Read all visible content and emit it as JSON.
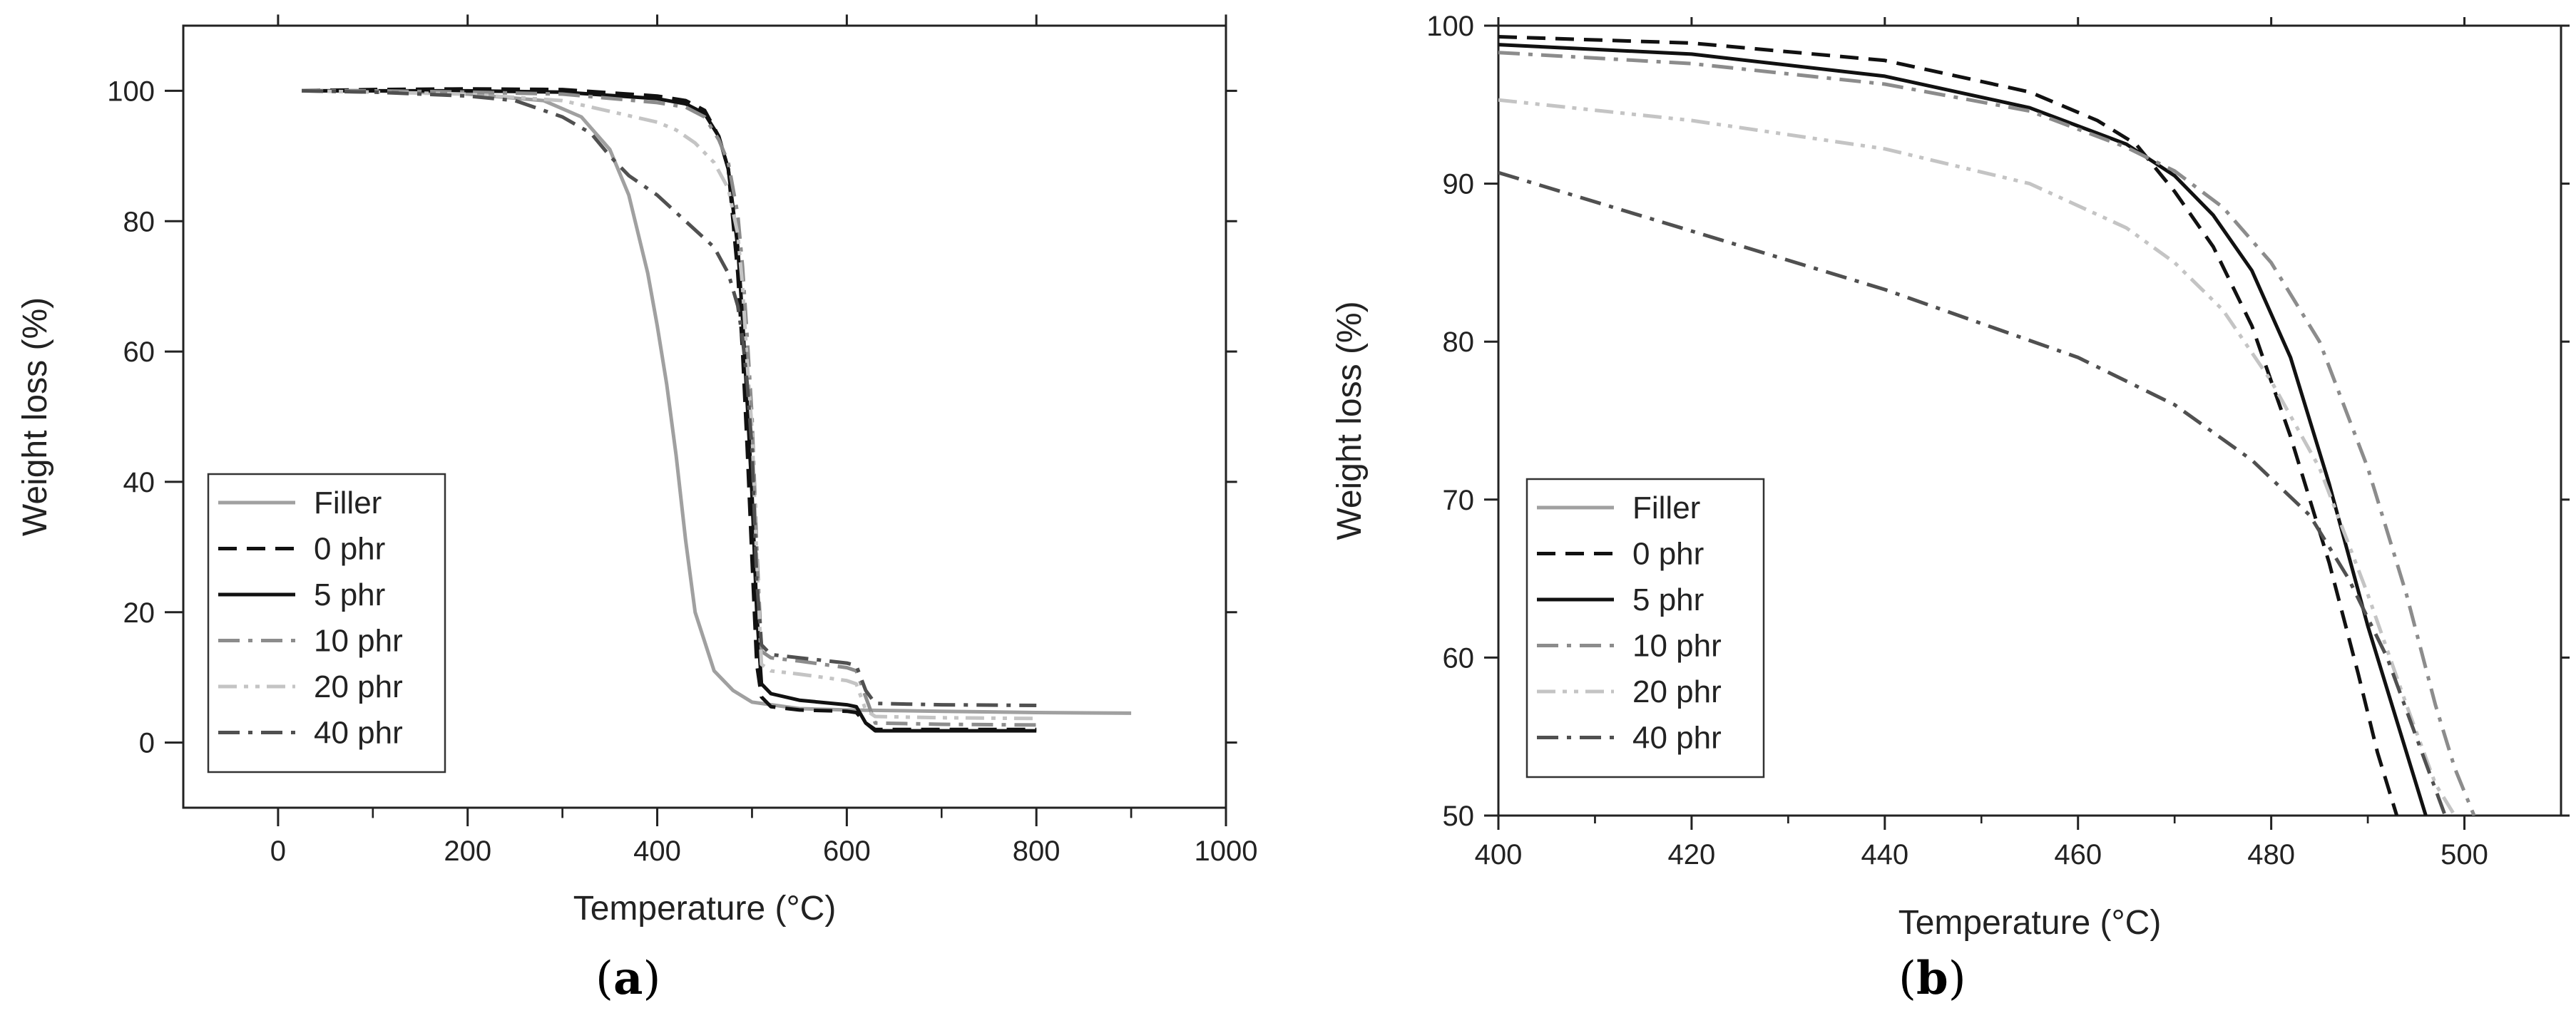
{
  "figure": {
    "panel_a_caption": "a",
    "panel_b_caption": "b"
  },
  "colors": {
    "Filler": "#a0a0a0",
    "0 phr": "#111111",
    "5 phr": "#111111",
    "10 phr": "#8c8c8c",
    "20 phr": "#c4c4c4",
    "40 phr": "#505050"
  },
  "chart_data": [
    {
      "panel": "a",
      "type": "line",
      "title": "",
      "xlabel": "Temperature (°C)",
      "ylabel": "Weight loss (%)",
      "xlim": [
        -100,
        1000
      ],
      "ylim": [
        -10,
        110
      ],
      "xticks": [
        0,
        200,
        400,
        600,
        800,
        1000
      ],
      "yticks": [
        0,
        20,
        40,
        60,
        80,
        100
      ],
      "grid": false,
      "legend_position": "lower-left",
      "series": [
        {
          "name": "Filler",
          "style": "solid",
          "x": [
            25,
            100,
            200,
            280,
            320,
            350,
            370,
            390,
            400,
            410,
            420,
            430,
            440,
            460,
            480,
            500,
            550,
            600,
            700,
            800,
            900
          ],
          "y": [
            100,
            100,
            99.5,
            98.5,
            96,
            91,
            84,
            72,
            64,
            55,
            44,
            31,
            20,
            11,
            8,
            6.2,
            5.2,
            5,
            4.8,
            4.6,
            4.5
          ]
        },
        {
          "name": "0 phr",
          "style": "dash",
          "x": [
            25,
            100,
            200,
            300,
            400,
            430,
            450,
            465,
            475,
            485,
            490,
            495,
            500,
            505,
            510,
            520,
            550,
            600,
            610,
            620,
            630,
            700,
            800
          ],
          "y": [
            100,
            100.2,
            100.3,
            100.2,
            99.2,
            98.5,
            97,
            93,
            88,
            72,
            60,
            45,
            28,
            12,
            7,
            5.5,
            5,
            4.8,
            4.6,
            3,
            2,
            2,
            2
          ]
        },
        {
          "name": "5 phr",
          "style": "solid",
          "x": [
            25,
            100,
            200,
            300,
            400,
            430,
            450,
            465,
            475,
            485,
            490,
            495,
            500,
            505,
            510,
            520,
            550,
            600,
            610,
            620,
            630,
            700,
            800
          ],
          "y": [
            100,
            100,
            100,
            99.8,
            98.8,
            98,
            96.5,
            93,
            88,
            76,
            65,
            52,
            38,
            20,
            9,
            7.5,
            6.5,
            5.8,
            5.5,
            3,
            1.8,
            1.8,
            1.8
          ]
        },
        {
          "name": "10 phr",
          "style": "dashdot",
          "x": [
            25,
            100,
            200,
            300,
            400,
            430,
            450,
            465,
            475,
            485,
            490,
            495,
            500,
            505,
            510,
            520,
            550,
            600,
            610,
            620,
            630,
            700,
            800
          ],
          "y": [
            100,
            100,
            99.8,
            99.5,
            98.2,
            97.5,
            96,
            92.5,
            89,
            81,
            73,
            62,
            50,
            30,
            14,
            13,
            12.5,
            11.5,
            11,
            7,
            3,
            2.8,
            2.7
          ]
        },
        {
          "name": "20 phr",
          "style": "dashdotdot",
          "x": [
            25,
            100,
            200,
            300,
            400,
            420,
            440,
            460,
            475,
            485,
            490,
            495,
            500,
            505,
            510,
            520,
            550,
            600,
            610,
            620,
            630,
            700,
            800
          ],
          "y": [
            100,
            99.8,
            99.5,
            98.5,
            95.2,
            94,
            92,
            89,
            85,
            78,
            70,
            58,
            48,
            28,
            12,
            11,
            10.5,
            9.5,
            9,
            5,
            4,
            3.8,
            3.7
          ]
        },
        {
          "name": "40 phr",
          "style": "dashdot",
          "x": [
            25,
            100,
            200,
            250,
            300,
            330,
            350,
            370,
            400,
            430,
            460,
            475,
            485,
            490,
            495,
            500,
            505,
            510,
            520,
            550,
            600,
            610,
            620,
            630,
            700,
            800
          ],
          "y": [
            100,
            99.8,
            99.2,
            98.5,
            96,
            93.5,
            90,
            87,
            84,
            80,
            76,
            72,
            67,
            62,
            55,
            45,
            25,
            15,
            13.5,
            13,
            12.2,
            11.8,
            8,
            6,
            5.8,
            5.7
          ]
        }
      ]
    },
    {
      "panel": "b",
      "type": "line",
      "title": "",
      "xlabel": "Temperature (°C)",
      "ylabel": "Weight loss (%)",
      "xlim": [
        400,
        510
      ],
      "ylim": [
        50,
        100
      ],
      "xticks": [
        400,
        420,
        440,
        460,
        480,
        500
      ],
      "yticks": [
        50,
        60,
        70,
        80,
        90,
        100
      ],
      "grid": false,
      "legend_position": "lower-left",
      "series": [
        {
          "name": "Filler",
          "style": "solid",
          "x": [],
          "y": []
        },
        {
          "name": "0 phr",
          "style": "dash",
          "x": [
            400,
            420,
            440,
            455,
            462,
            466,
            470,
            474,
            478,
            482,
            486,
            489,
            491,
            493
          ],
          "y": [
            99.3,
            98.9,
            97.8,
            95.8,
            94,
            92.5,
            89.5,
            86,
            81,
            74,
            66,
            59,
            54,
            50
          ]
        },
        {
          "name": "5 phr",
          "style": "solid",
          "x": [
            400,
            420,
            440,
            455,
            465,
            470,
            474,
            478,
            482,
            486,
            490,
            493,
            496
          ],
          "y": [
            98.8,
            98.2,
            96.8,
            94.8,
            92.5,
            90.5,
            88,
            84.5,
            79,
            71,
            62,
            56,
            50
          ]
        },
        {
          "name": "10 phr",
          "style": "dashdot",
          "x": [
            400,
            420,
            440,
            455,
            465,
            470,
            475,
            480,
            485,
            490,
            494,
            497,
            499,
            501
          ],
          "y": [
            98.3,
            97.6,
            96.3,
            94.6,
            92.3,
            90.8,
            88.5,
            85,
            80,
            72,
            64,
            57,
            53,
            50
          ]
        },
        {
          "name": "20 phr",
          "style": "dashdotdot",
          "x": [
            400,
            420,
            440,
            455,
            465,
            470,
            475,
            480,
            485,
            490,
            494,
            497,
            499
          ],
          "y": [
            95.3,
            94,
            92.2,
            90,
            87.2,
            85,
            82,
            77.5,
            72,
            64,
            57,
            52,
            50
          ]
        },
        {
          "name": "40 phr",
          "style": "dashdot",
          "x": [
            400,
            420,
            440,
            460,
            470,
            478,
            484,
            488,
            492,
            495,
            498
          ],
          "y": [
            90.7,
            87,
            83.3,
            79,
            76,
            72.5,
            69,
            65,
            60,
            55,
            50
          ]
        }
      ]
    }
  ]
}
